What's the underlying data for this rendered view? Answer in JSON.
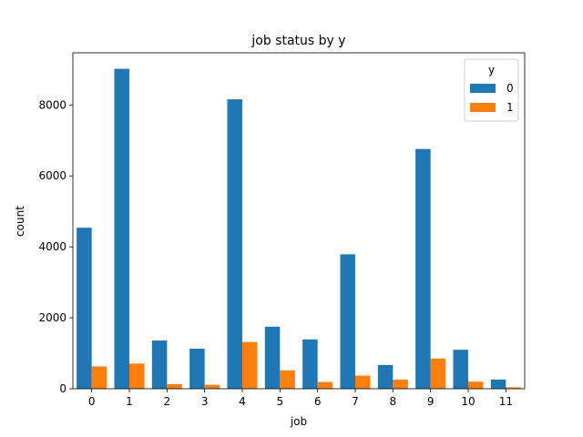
{
  "chart_data": {
    "type": "bar",
    "title": "job status by y",
    "xlabel": "job",
    "ylabel": "count",
    "categories": [
      "0",
      "1",
      "2",
      "3",
      "4",
      "5",
      "6",
      "7",
      "8",
      "9",
      "10",
      "11"
    ],
    "series": [
      {
        "name": "0",
        "color": "#1f77b4",
        "values": [
          4540,
          9020,
          1360,
          1130,
          8160,
          1750,
          1390,
          3790,
          670,
          6760,
          1100,
          260
        ]
      },
      {
        "name": "1",
        "color": "#ff7f0e",
        "values": [
          630,
          710,
          130,
          110,
          1320,
          520,
          190,
          370,
          260,
          850,
          200,
          40
        ]
      }
    ],
    "ylim": [
      0,
      9471
    ],
    "yticks": [
      0,
      2000,
      4000,
      6000,
      8000
    ],
    "legend": {
      "title": "y",
      "placement": "top-right"
    },
    "grid": false
  }
}
